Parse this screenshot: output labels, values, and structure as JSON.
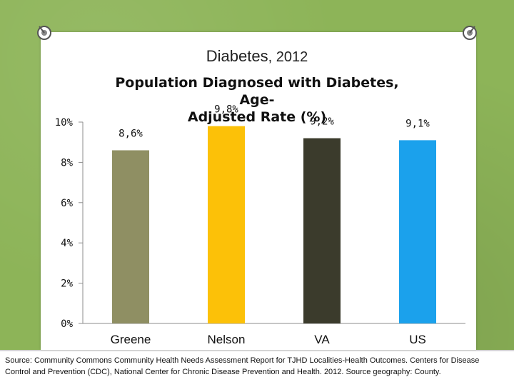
{
  "header": {
    "title": "Diabetes",
    "title_year": ", 2012"
  },
  "chart_data": {
    "type": "bar",
    "title": "Population Diagnosed with Diabetes, Age-Adjusted Rate (%)",
    "title_line1": "Population Diagnosed with Diabetes, Age-",
    "title_line2": "Adjusted Rate (%)",
    "categories": [
      "Greene",
      "Nelson",
      "VA",
      "US"
    ],
    "values": [
      8.6,
      9.8,
      9.2,
      9.1
    ],
    "value_labels": [
      "8,6%",
      "9,8%",
      "9,2%",
      "9,1%"
    ],
    "colors": [
      "#8f8f63",
      "#fcc108",
      "#3b3b2c",
      "#1ba1ec"
    ],
    "ylim": [
      0,
      10
    ],
    "yticks": [
      0,
      2,
      4,
      6,
      8,
      10
    ],
    "ytick_labels": [
      "0%",
      "2%",
      "4%",
      "6%",
      "8%",
      "10%"
    ],
    "xlabel": "",
    "ylabel": "",
    "grid": false,
    "legend": "none"
  },
  "footer": {
    "source": "Source: Community Commons Community Health Needs Assessment Report for TJHD Localities-Health Outcomes. Centers for Disease Control and Prevention (CDC), National Center for Chronic Disease Prevention and Health. 2012. Source geography: County."
  }
}
